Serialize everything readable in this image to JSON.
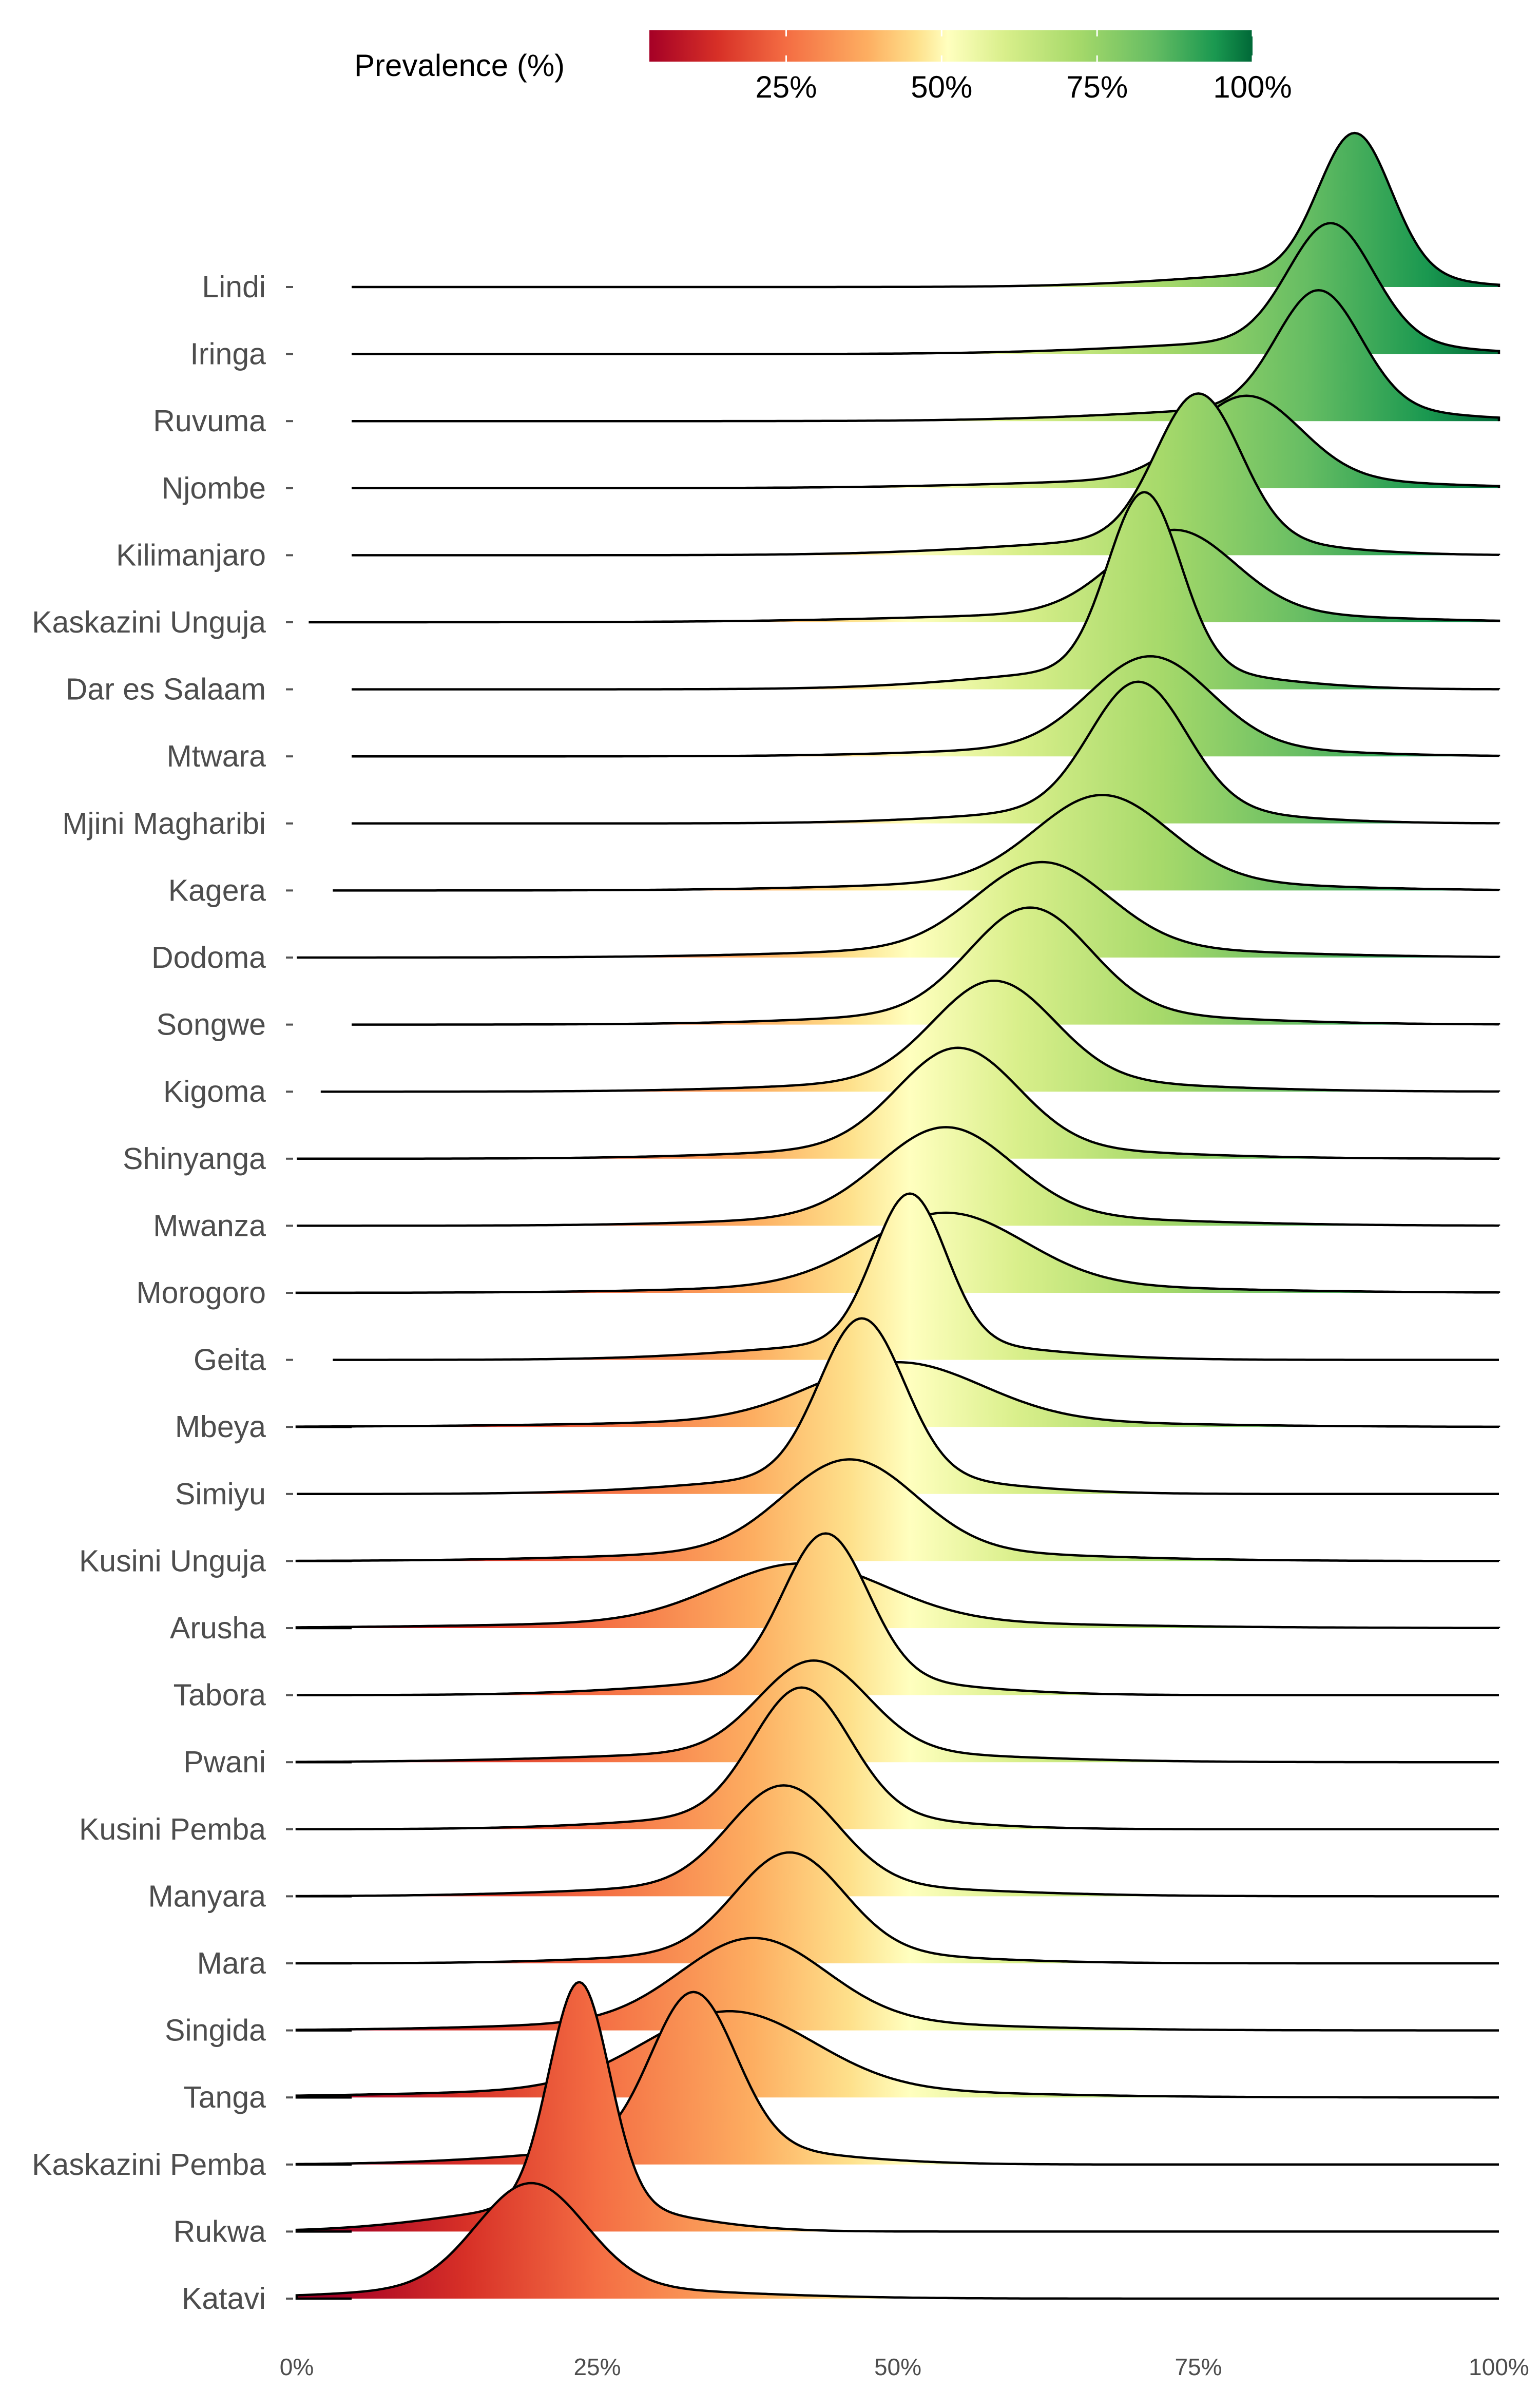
{
  "chart_data": {
    "type": "ridgeline",
    "legend": {
      "title": "Prevalence (%)",
      "ticks": [
        {
          "value": 25,
          "label": "25%"
        },
        {
          "value": 50,
          "label": "50%"
        },
        {
          "value": 75,
          "label": "75%"
        },
        {
          "value": 100,
          "label": "100%"
        }
      ],
      "range": [
        3,
        100
      ],
      "position": "top"
    },
    "color_scale": {
      "name": "RdYlGn",
      "stops": [
        {
          "value": 3,
          "color": "#a50026"
        },
        {
          "value": 14,
          "color": "#d73027"
        },
        {
          "value": 25,
          "color": "#f46d43"
        },
        {
          "value": 38,
          "color": "#fdae61"
        },
        {
          "value": 46,
          "color": "#fee08b"
        },
        {
          "value": 51,
          "color": "#ffffbf"
        },
        {
          "value": 60,
          "color": "#d9ef8b"
        },
        {
          "value": 72,
          "color": "#a6d96a"
        },
        {
          "value": 84,
          "color": "#66bd63"
        },
        {
          "value": 94,
          "color": "#1a9850"
        },
        {
          "value": 100,
          "color": "#006837"
        }
      ]
    },
    "x_axis": {
      "range": [
        0,
        100
      ],
      "ticks": [
        {
          "value": 0,
          "label": "0%"
        },
        {
          "value": 25,
          "label": "25%"
        },
        {
          "value": 50,
          "label": "50%"
        },
        {
          "value": 75,
          "label": "75%"
        },
        {
          "value": 100,
          "label": "100%"
        }
      ],
      "grid": false
    },
    "outline_color": "#000000",
    "series": [
      {
        "name": "Lindi",
        "peak_x": 88.0,
        "spread": 3.0,
        "left_tail": 12,
        "right_tail": 6,
        "relative_height": 1.0
      },
      {
        "name": "Iringa",
        "peak_x": 86.0,
        "spread": 3.5,
        "left_tail": 14,
        "right_tail": 8,
        "relative_height": 0.85
      },
      {
        "name": "Ruvuma",
        "peak_x": 85.0,
        "spread": 3.5,
        "left_tail": 14,
        "right_tail": 9,
        "relative_height": 0.85
      },
      {
        "name": "Njombe",
        "peak_x": 79.0,
        "spread": 4.5,
        "left_tail": 16,
        "right_tail": 12,
        "relative_height": 0.6
      },
      {
        "name": "Kilimanjaro",
        "peak_x": 75.0,
        "spread": 3.5,
        "left_tail": 14,
        "right_tail": 9,
        "relative_height": 1.05
      },
      {
        "name": "Kaskazini Unguja",
        "peak_x": 73.0,
        "spread": 5.0,
        "left_tail": 18,
        "right_tail": 14,
        "relative_height": 0.6
      },
      {
        "name": "Dar es Salaam",
        "peak_x": 70.5,
        "spread": 3.0,
        "left_tail": 12,
        "right_tail": 9,
        "relative_height": 1.28
      },
      {
        "name": "Mtwara",
        "peak_x": 71.0,
        "spread": 5.0,
        "left_tail": 14,
        "right_tail": 12,
        "relative_height": 0.65
      },
      {
        "name": "Mjini Magharibi",
        "peak_x": 70.0,
        "spread": 4.0,
        "left_tail": 12,
        "right_tail": 10,
        "relative_height": 0.92
      },
      {
        "name": "Kagera",
        "peak_x": 67.0,
        "spread": 5.5,
        "left_tail": 16,
        "right_tail": 14,
        "relative_height": 0.62
      },
      {
        "name": "Dodoma",
        "peak_x": 62.0,
        "spread": 5.5,
        "left_tail": 16,
        "right_tail": 16,
        "relative_height": 0.62
      },
      {
        "name": "Songwe",
        "peak_x": 61.0,
        "spread": 5.0,
        "left_tail": 14,
        "right_tail": 14,
        "relative_height": 0.76
      },
      {
        "name": "Kigoma",
        "peak_x": 58.0,
        "spread": 5.0,
        "left_tail": 14,
        "right_tail": 14,
        "relative_height": 0.72
      },
      {
        "name": "Shinyanga",
        "peak_x": 55.0,
        "spread": 5.0,
        "left_tail": 14,
        "right_tail": 14,
        "relative_height": 0.72
      },
      {
        "name": "Mwanza",
        "peak_x": 54.0,
        "spread": 5.5,
        "left_tail": 14,
        "right_tail": 16,
        "relative_height": 0.64
      },
      {
        "name": "Morogoro",
        "peak_x": 54.0,
        "spread": 6.5,
        "left_tail": 16,
        "right_tail": 18,
        "relative_height": 0.52
      },
      {
        "name": "Geita",
        "peak_x": 51.0,
        "spread": 3.0,
        "left_tail": 12,
        "right_tail": 10,
        "relative_height": 1.08
      },
      {
        "name": "Mbeya",
        "peak_x": 50.0,
        "spread": 7.0,
        "left_tail": 20,
        "right_tail": 18,
        "relative_height": 0.42
      },
      {
        "name": "Simiyu",
        "peak_x": 47.0,
        "spread": 3.5,
        "left_tail": 12,
        "right_tail": 10,
        "relative_height": 1.14
      },
      {
        "name": "Kusini Unguja",
        "peak_x": 46.0,
        "spread": 5.5,
        "left_tail": 16,
        "right_tail": 16,
        "relative_height": 0.66
      },
      {
        "name": "Arusha",
        "peak_x": 42.0,
        "spread": 7.0,
        "left_tail": 20,
        "right_tail": 20,
        "relative_height": 0.42
      },
      {
        "name": "Tabora",
        "peak_x": 44.0,
        "spread": 3.5,
        "left_tail": 12,
        "right_tail": 10,
        "relative_height": 1.05
      },
      {
        "name": "Pwani",
        "peak_x": 43.0,
        "spread": 4.5,
        "left_tail": 16,
        "right_tail": 14,
        "relative_height": 0.66
      },
      {
        "name": "Kusini Pemba",
        "peak_x": 42.0,
        "spread": 4.0,
        "left_tail": 12,
        "right_tail": 10,
        "relative_height": 0.92
      },
      {
        "name": "Manyara",
        "peak_x": 40.5,
        "spread": 4.5,
        "left_tail": 14,
        "right_tail": 14,
        "relative_height": 0.72
      },
      {
        "name": "Mara",
        "peak_x": 41.0,
        "spread": 4.5,
        "left_tail": 12,
        "right_tail": 12,
        "relative_height": 0.72
      },
      {
        "name": "Singida",
        "peak_x": 38.0,
        "spread": 6.0,
        "left_tail": 16,
        "right_tail": 16,
        "relative_height": 0.6
      },
      {
        "name": "Tanga",
        "peak_x": 36.0,
        "spread": 7.0,
        "left_tail": 20,
        "right_tail": 18,
        "relative_height": 0.56
      },
      {
        "name": "Kaskazini Pemba",
        "peak_x": 33.0,
        "spread": 3.5,
        "left_tail": 12,
        "right_tail": 10,
        "relative_height": 1.12
      },
      {
        "name": "Rukwa",
        "peak_x": 23.5,
        "spread": 2.5,
        "left_tail": 10,
        "right_tail": 8,
        "relative_height": 1.62
      },
      {
        "name": "Katavi",
        "peak_x": 19.5,
        "spread": 4.5,
        "left_tail": 12,
        "right_tail": 14,
        "relative_height": 0.75
      }
    ]
  }
}
